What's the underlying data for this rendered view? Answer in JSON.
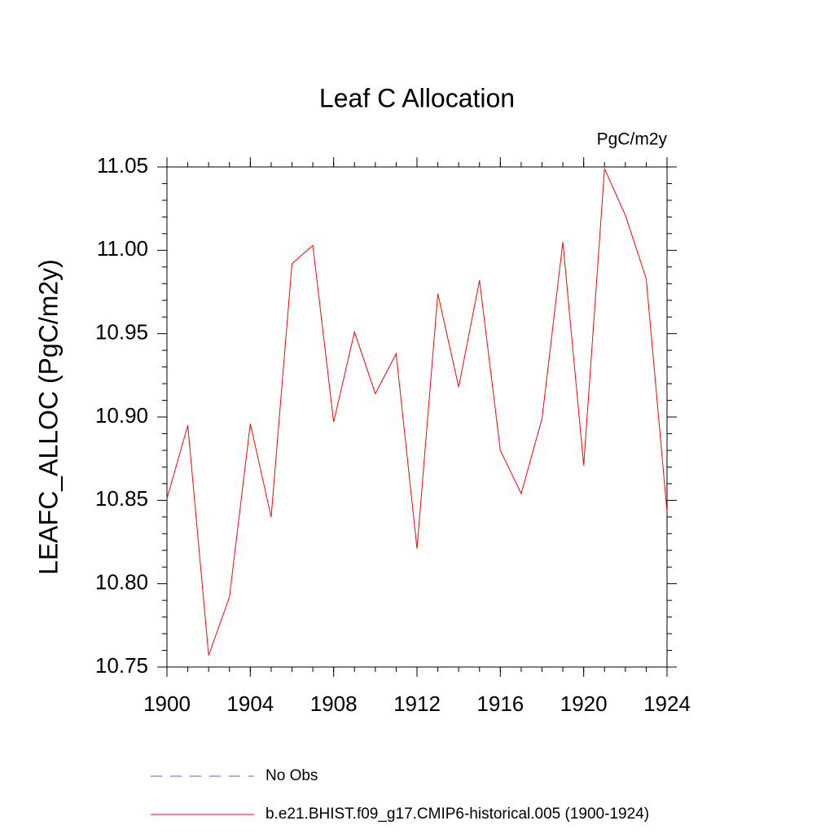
{
  "chart_data": {
    "type": "line",
    "title": "Leaf C Allocation",
    "units_label": "PgC/m2y",
    "ylabel": "LEAFC_ALLOC  (PgC/m2y)",
    "x": [
      1900,
      1901,
      1902,
      1903,
      1904,
      1905,
      1906,
      1907,
      1908,
      1909,
      1910,
      1911,
      1912,
      1913,
      1914,
      1915,
      1916,
      1917,
      1918,
      1919,
      1920,
      1921,
      1922,
      1923,
      1924
    ],
    "series": [
      {
        "name": "No Obs",
        "color": "#6a5acd",
        "dashed": true,
        "values": [
          null,
          null,
          null,
          null,
          null,
          null,
          null,
          null,
          null,
          null,
          null,
          null,
          null,
          null,
          null,
          null,
          null,
          null,
          null,
          null,
          null,
          null,
          null,
          null,
          null
        ]
      },
      {
        "name": "b.e21.BHIST.f09_g17.CMIP6-historical.005 (1900-1924)",
        "color": "#ff0000",
        "dashed": false,
        "values": [
          10.851,
          10.895,
          10.757,
          10.792,
          10.896,
          10.84,
          10.992,
          11.003,
          10.897,
          10.951,
          10.914,
          10.938,
          10.821,
          10.974,
          10.918,
          10.982,
          10.88,
          10.854,
          10.899,
          11.005,
          10.871,
          11.049,
          11.021,
          10.983,
          10.843
        ]
      }
    ],
    "xlim": [
      1900,
      1924
    ],
    "xticks": [
      1900,
      1904,
      1908,
      1912,
      1916,
      1920,
      1924
    ],
    "ylim": [
      10.75,
      11.05
    ],
    "yticks": [
      {
        "value": 10.75,
        "label": "10.75"
      },
      {
        "value": 10.8,
        "label": "10.80"
      },
      {
        "value": 10.85,
        "label": "10.85"
      },
      {
        "value": 10.9,
        "label": "10.90"
      },
      {
        "value": 10.95,
        "label": "10.95"
      },
      {
        "value": 11.0,
        "label": "11.00"
      },
      {
        "value": 11.05,
        "label": "11.05"
      }
    ],
    "yminorticks": [
      10.76,
      10.77,
      10.78,
      10.79,
      10.81,
      10.82,
      10.83,
      10.84,
      10.86,
      10.87,
      10.88,
      10.89,
      10.91,
      10.92,
      10.93,
      10.94,
      10.96,
      10.97,
      10.98,
      10.99,
      11.01,
      11.02,
      11.03,
      11.04
    ],
    "grid": false
  }
}
